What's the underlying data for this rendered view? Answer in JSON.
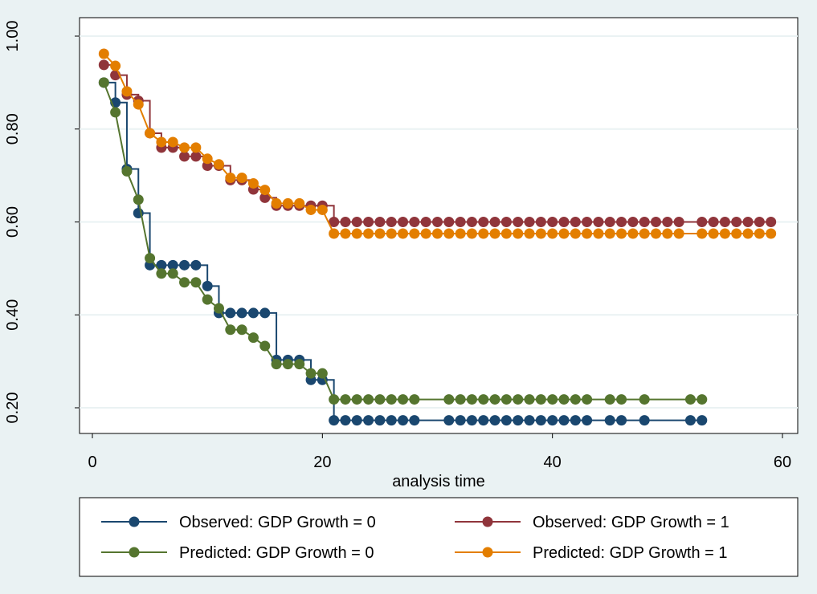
{
  "chart_data": {
    "type": "line",
    "title": "",
    "xlabel": "analysis time",
    "ylabel": "",
    "xlim": [
      0,
      60
    ],
    "ylim": [
      0.2,
      1.0
    ],
    "x_ticks": [
      0,
      20,
      40,
      60
    ],
    "x_tick_labels": [
      "0",
      "20",
      "40",
      "60"
    ],
    "y_ticks": [
      0.2,
      0.4,
      0.6,
      0.8,
      1.0
    ],
    "y_tick_labels": [
      "0.20",
      "0.40",
      "0.60",
      "0.80",
      "1.00"
    ],
    "grid": true,
    "legend_position": "bottom",
    "series": [
      {
        "name": "Observed: GDP Growth = 0",
        "color": "#1a476f",
        "style": "step",
        "points": [
          [
            1,
            0.9
          ],
          [
            2,
            0.857
          ],
          [
            3,
            0.714
          ],
          [
            4,
            0.619
          ],
          [
            5,
            0.507
          ],
          [
            6,
            0.507
          ],
          [
            7,
            0.507
          ],
          [
            8,
            0.507
          ],
          [
            9,
            0.507
          ],
          [
            10,
            0.462
          ],
          [
            11,
            0.404
          ],
          [
            12,
            0.404
          ],
          [
            13,
            0.404
          ],
          [
            14,
            0.404
          ],
          [
            15,
            0.404
          ],
          [
            16,
            0.303
          ],
          [
            17,
            0.303
          ],
          [
            18,
            0.303
          ],
          [
            19,
            0.26
          ],
          [
            20,
            0.26
          ],
          [
            21,
            0.173
          ],
          [
            22,
            0.173
          ],
          [
            23,
            0.173
          ],
          [
            24,
            0.173
          ],
          [
            25,
            0.173
          ],
          [
            26,
            0.173
          ],
          [
            27,
            0.173
          ],
          [
            28,
            0.173
          ],
          [
            31,
            0.173
          ],
          [
            32,
            0.173
          ],
          [
            33,
            0.173
          ],
          [
            34,
            0.173
          ],
          [
            35,
            0.173
          ],
          [
            36,
            0.173
          ],
          [
            37,
            0.173
          ],
          [
            38,
            0.173
          ],
          [
            39,
            0.173
          ],
          [
            40,
            0.173
          ],
          [
            41,
            0.173
          ],
          [
            42,
            0.173
          ],
          [
            43,
            0.173
          ],
          [
            45,
            0.173
          ],
          [
            46,
            0.173
          ],
          [
            48,
            0.173
          ],
          [
            52,
            0.173
          ],
          [
            53,
            0.173
          ]
        ]
      },
      {
        "name": "Observed: GDP Growth = 1",
        "color": "#90353b",
        "style": "step",
        "points": [
          [
            1,
            0.938
          ],
          [
            2,
            0.916
          ],
          [
            3,
            0.874
          ],
          [
            4,
            0.861
          ],
          [
            5,
            0.791
          ],
          [
            6,
            0.76
          ],
          [
            7,
            0.76
          ],
          [
            8,
            0.741
          ],
          [
            9,
            0.741
          ],
          [
            10,
            0.721
          ],
          [
            11,
            0.721
          ],
          [
            12,
            0.69
          ],
          [
            13,
            0.69
          ],
          [
            14,
            0.67
          ],
          [
            15,
            0.652
          ],
          [
            16,
            0.635
          ],
          [
            17,
            0.635
          ],
          [
            18,
            0.635
          ],
          [
            19,
            0.635
          ],
          [
            20,
            0.635
          ],
          [
            21,
            0.6
          ],
          [
            22,
            0.6
          ],
          [
            23,
            0.6
          ],
          [
            24,
            0.6
          ],
          [
            25,
            0.6
          ],
          [
            26,
            0.6
          ],
          [
            27,
            0.6
          ],
          [
            28,
            0.6
          ],
          [
            29,
            0.6
          ],
          [
            30,
            0.6
          ],
          [
            31,
            0.6
          ],
          [
            32,
            0.6
          ],
          [
            33,
            0.6
          ],
          [
            34,
            0.6
          ],
          [
            35,
            0.6
          ],
          [
            36,
            0.6
          ],
          [
            37,
            0.6
          ],
          [
            38,
            0.6
          ],
          [
            39,
            0.6
          ],
          [
            40,
            0.6
          ],
          [
            41,
            0.6
          ],
          [
            42,
            0.6
          ],
          [
            43,
            0.6
          ],
          [
            44,
            0.6
          ],
          [
            45,
            0.6
          ],
          [
            46,
            0.6
          ],
          [
            47,
            0.6
          ],
          [
            48,
            0.6
          ],
          [
            49,
            0.6
          ],
          [
            50,
            0.6
          ],
          [
            51,
            0.6
          ],
          [
            53,
            0.6
          ],
          [
            54,
            0.6
          ],
          [
            55,
            0.6
          ],
          [
            56,
            0.6
          ],
          [
            57,
            0.6
          ],
          [
            58,
            0.6
          ],
          [
            59,
            0.6
          ]
        ]
      },
      {
        "name": "Predicted: GDP Growth = 0",
        "color": "#55752f",
        "style": "line",
        "points": [
          [
            1,
            0.9
          ],
          [
            2,
            0.836
          ],
          [
            3,
            0.709
          ],
          [
            4,
            0.648
          ],
          [
            5,
            0.522
          ],
          [
            6,
            0.489
          ],
          [
            7,
            0.489
          ],
          [
            8,
            0.47
          ],
          [
            9,
            0.47
          ],
          [
            10,
            0.433
          ],
          [
            11,
            0.414
          ],
          [
            12,
            0.368
          ],
          [
            13,
            0.368
          ],
          [
            14,
            0.351
          ],
          [
            15,
            0.333
          ],
          [
            16,
            0.294
          ],
          [
            17,
            0.294
          ],
          [
            18,
            0.294
          ],
          [
            19,
            0.274
          ],
          [
            20,
            0.274
          ],
          [
            21,
            0.218
          ],
          [
            22,
            0.218
          ],
          [
            23,
            0.218
          ],
          [
            24,
            0.218
          ],
          [
            25,
            0.218
          ],
          [
            26,
            0.218
          ],
          [
            27,
            0.218
          ],
          [
            28,
            0.218
          ],
          [
            31,
            0.218
          ],
          [
            32,
            0.218
          ],
          [
            33,
            0.218
          ],
          [
            34,
            0.218
          ],
          [
            35,
            0.218
          ],
          [
            36,
            0.218
          ],
          [
            37,
            0.218
          ],
          [
            38,
            0.218
          ],
          [
            39,
            0.218
          ],
          [
            40,
            0.218
          ],
          [
            41,
            0.218
          ],
          [
            42,
            0.218
          ],
          [
            43,
            0.218
          ],
          [
            45,
            0.218
          ],
          [
            46,
            0.218
          ],
          [
            48,
            0.218
          ],
          [
            52,
            0.218
          ],
          [
            53,
            0.218
          ]
        ]
      },
      {
        "name": "Predicted: GDP Growth = 1",
        "color": "#e37e00",
        "style": "line",
        "points": [
          [
            1,
            0.962
          ],
          [
            2,
            0.936
          ],
          [
            3,
            0.881
          ],
          [
            4,
            0.853
          ],
          [
            5,
            0.791
          ],
          [
            6,
            0.772
          ],
          [
            7,
            0.772
          ],
          [
            8,
            0.76
          ],
          [
            9,
            0.76
          ],
          [
            10,
            0.736
          ],
          [
            11,
            0.724
          ],
          [
            12,
            0.695
          ],
          [
            13,
            0.695
          ],
          [
            14,
            0.683
          ],
          [
            15,
            0.669
          ],
          [
            16,
            0.64
          ],
          [
            17,
            0.64
          ],
          [
            18,
            0.64
          ],
          [
            19,
            0.626
          ],
          [
            20,
            0.626
          ],
          [
            21,
            0.575
          ],
          [
            22,
            0.575
          ],
          [
            23,
            0.575
          ],
          [
            24,
            0.575
          ],
          [
            25,
            0.575
          ],
          [
            26,
            0.575
          ],
          [
            27,
            0.575
          ],
          [
            28,
            0.575
          ],
          [
            29,
            0.575
          ],
          [
            30,
            0.575
          ],
          [
            31,
            0.575
          ],
          [
            32,
            0.575
          ],
          [
            33,
            0.575
          ],
          [
            34,
            0.575
          ],
          [
            35,
            0.575
          ],
          [
            36,
            0.575
          ],
          [
            37,
            0.575
          ],
          [
            38,
            0.575
          ],
          [
            39,
            0.575
          ],
          [
            40,
            0.575
          ],
          [
            41,
            0.575
          ],
          [
            42,
            0.575
          ],
          [
            43,
            0.575
          ],
          [
            44,
            0.575
          ],
          [
            45,
            0.575
          ],
          [
            46,
            0.575
          ],
          [
            47,
            0.575
          ],
          [
            48,
            0.575
          ],
          [
            49,
            0.575
          ],
          [
            50,
            0.575
          ],
          [
            51,
            0.575
          ],
          [
            53,
            0.575
          ],
          [
            54,
            0.575
          ],
          [
            55,
            0.575
          ],
          [
            56,
            0.575
          ],
          [
            57,
            0.575
          ],
          [
            58,
            0.575
          ],
          [
            59,
            0.575
          ]
        ]
      }
    ]
  }
}
